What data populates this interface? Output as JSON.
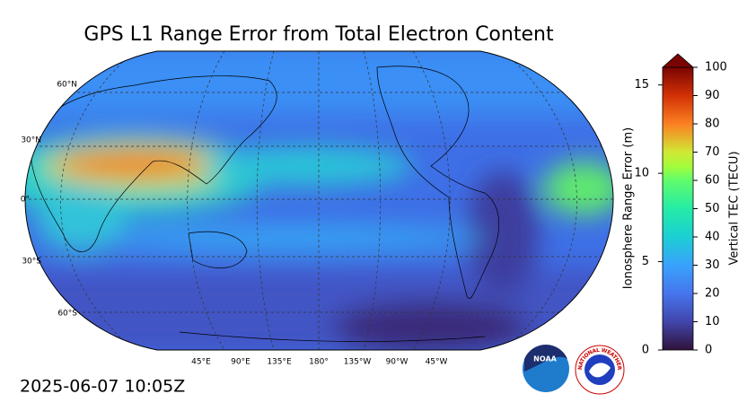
{
  "title": "GPS L1 Range Error from Total Electron Content",
  "timestamp": "2025-06-07 10:05Z",
  "map": {
    "lat_labels": [
      "60°N",
      "30°N",
      "0°",
      "30°S",
      "60°S"
    ],
    "lon_labels": [
      "45°E",
      "90°E",
      "135°E",
      "180°",
      "135°W",
      "90°W",
      "45°W"
    ]
  },
  "colorbar": {
    "label_left": "Ionosphere Range Error (m)",
    "label_right": "Vertical TEC (TECU)",
    "error_lim": [
      0,
      16
    ],
    "error_ticks": [
      0,
      5,
      10,
      15
    ],
    "tec_lim": [
      0,
      100
    ],
    "tec_ticks": [
      0,
      10,
      20,
      30,
      40,
      50,
      60,
      70,
      80,
      90,
      100
    ]
  },
  "logos": {
    "noaa": "NOAA",
    "nws": "NATIONAL WEATHER SERVICE"
  }
}
